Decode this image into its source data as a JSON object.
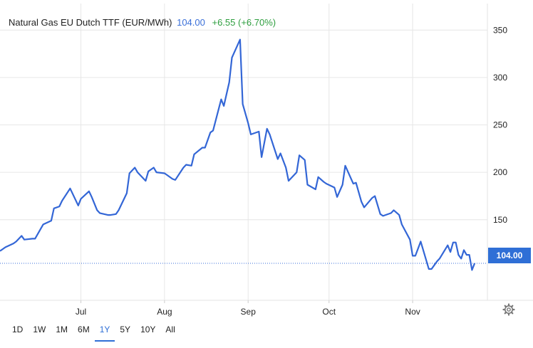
{
  "header": {
    "instrument": "Natural Gas EU Dutch TTF (EUR/MWh)",
    "price": "104.00",
    "change": "+6.55 (+6.70%)"
  },
  "price_tag": "104.00",
  "range_buttons": [
    "1D",
    "1W",
    "1M",
    "6M",
    "1Y",
    "5Y",
    "10Y",
    "All"
  ],
  "active_range": "1Y",
  "settings_icon": "gear-icon",
  "colors": {
    "line": "#3366d6",
    "price_tag": "#2f6fd6",
    "change_positive": "#2e9e3f",
    "grid": "#e6e6e6"
  },
  "chart_data": {
    "type": "line",
    "title": "Natural Gas EU Dutch TTF (EUR/MWh)",
    "xlabel": "",
    "ylabel": "",
    "ylim": [
      65,
      378
    ],
    "yticks": [
      150,
      200,
      250,
      300,
      350
    ],
    "xticks": [
      {
        "label": "Jul",
        "date": "2022-07-01"
      },
      {
        "label": "Aug",
        "date": "2022-08-01"
      },
      {
        "label": "Sep",
        "date": "2022-09-01"
      },
      {
        "label": "Oct",
        "date": "2022-10-01"
      },
      {
        "label": "Nov",
        "date": "2022-11-01"
      }
    ],
    "xlim": [
      "2022-06-01",
      "2022-11-20"
    ],
    "grid": true,
    "last_price_line": 104,
    "series": [
      {
        "values": [
          [
            "2022-06-01",
            117
          ],
          [
            "2022-06-03",
            121
          ],
          [
            "2022-06-06",
            125
          ],
          [
            "2022-06-07",
            127
          ],
          [
            "2022-06-09",
            133
          ],
          [
            "2022-06-10",
            129
          ],
          [
            "2022-06-13",
            130
          ],
          [
            "2022-06-14",
            130
          ],
          [
            "2022-06-16",
            140
          ],
          [
            "2022-06-17",
            145
          ],
          [
            "2022-06-20",
            149
          ],
          [
            "2022-06-21",
            162
          ],
          [
            "2022-06-23",
            164
          ],
          [
            "2022-06-24",
            170
          ],
          [
            "2022-06-27",
            183
          ],
          [
            "2022-06-28",
            177
          ],
          [
            "2022-06-30",
            165
          ],
          [
            "2022-07-01",
            172
          ],
          [
            "2022-07-04",
            180
          ],
          [
            "2022-07-05",
            174
          ],
          [
            "2022-07-07",
            160
          ],
          [
            "2022-07-08",
            157
          ],
          [
            "2022-07-11",
            155
          ],
          [
            "2022-07-12",
            155
          ],
          [
            "2022-07-14",
            156
          ],
          [
            "2022-07-15",
            160
          ],
          [
            "2022-07-18",
            178
          ],
          [
            "2022-07-19",
            199
          ],
          [
            "2022-07-21",
            205
          ],
          [
            "2022-07-22",
            200
          ],
          [
            "2022-07-25",
            191
          ],
          [
            "2022-07-26",
            201
          ],
          [
            "2022-07-28",
            205
          ],
          [
            "2022-07-29",
            200
          ],
          [
            "2022-08-01",
            199
          ],
          [
            "2022-08-02",
            197
          ],
          [
            "2022-08-04",
            193
          ],
          [
            "2022-08-05",
            192
          ],
          [
            "2022-08-08",
            205
          ],
          [
            "2022-08-09",
            208
          ],
          [
            "2022-08-11",
            207
          ],
          [
            "2022-08-12",
            219
          ],
          [
            "2022-08-15",
            226
          ],
          [
            "2022-08-16",
            226
          ],
          [
            "2022-08-18",
            242
          ],
          [
            "2022-08-19",
            244
          ],
          [
            "2022-08-22",
            277
          ],
          [
            "2022-08-23",
            270
          ],
          [
            "2022-08-25",
            295
          ],
          [
            "2022-08-26",
            321
          ],
          [
            "2022-08-29",
            340
          ],
          [
            "2022-08-30",
            272
          ],
          [
            "2022-09-01",
            252
          ],
          [
            "2022-09-02",
            240
          ],
          [
            "2022-09-05",
            243
          ],
          [
            "2022-09-06",
            216
          ],
          [
            "2022-09-08",
            246
          ],
          [
            "2022-09-09",
            240
          ],
          [
            "2022-09-12",
            214
          ],
          [
            "2022-09-13",
            220
          ],
          [
            "2022-09-15",
            205
          ],
          [
            "2022-09-16",
            191
          ],
          [
            "2022-09-19",
            200
          ],
          [
            "2022-09-20",
            218
          ],
          [
            "2022-09-22",
            213
          ],
          [
            "2022-09-23",
            187
          ],
          [
            "2022-09-26",
            182
          ],
          [
            "2022-09-27",
            195
          ],
          [
            "2022-09-29",
            190
          ],
          [
            "2022-09-30",
            188
          ],
          [
            "2022-10-03",
            184
          ],
          [
            "2022-10-04",
            174
          ],
          [
            "2022-10-06",
            187
          ],
          [
            "2022-10-07",
            207
          ],
          [
            "2022-10-10",
            188
          ],
          [
            "2022-10-11",
            189
          ],
          [
            "2022-10-13",
            169
          ],
          [
            "2022-10-14",
            163
          ],
          [
            "2022-10-17",
            173
          ],
          [
            "2022-10-18",
            175
          ],
          [
            "2022-10-20",
            156
          ],
          [
            "2022-10-21",
            154
          ],
          [
            "2022-10-24",
            157
          ],
          [
            "2022-10-25",
            160
          ],
          [
            "2022-10-27",
            155
          ],
          [
            "2022-10-28",
            145
          ],
          [
            "2022-10-31",
            129
          ],
          [
            "2022-11-01",
            112
          ],
          [
            "2022-11-02",
            112
          ],
          [
            "2022-11-04",
            127
          ],
          [
            "2022-11-07",
            98
          ],
          [
            "2022-11-08",
            98
          ],
          [
            "2022-11-09",
            102
          ],
          [
            "2022-11-10",
            106
          ],
          [
            "2022-11-11",
            109
          ],
          [
            "2022-11-14",
            123
          ],
          [
            "2022-11-15",
            116
          ],
          [
            "2022-11-16",
            126
          ],
          [
            "2022-11-17",
            126
          ],
          [
            "2022-11-18",
            113
          ],
          [
            "2022-11-19",
            109
          ],
          [
            "2022-11-20",
            118
          ],
          [
            "2022-11-21",
            113
          ],
          [
            "2022-11-22",
            113
          ],
          [
            "2022-11-23",
            97
          ],
          [
            "2022-11-24",
            104
          ]
        ]
      }
    ]
  }
}
